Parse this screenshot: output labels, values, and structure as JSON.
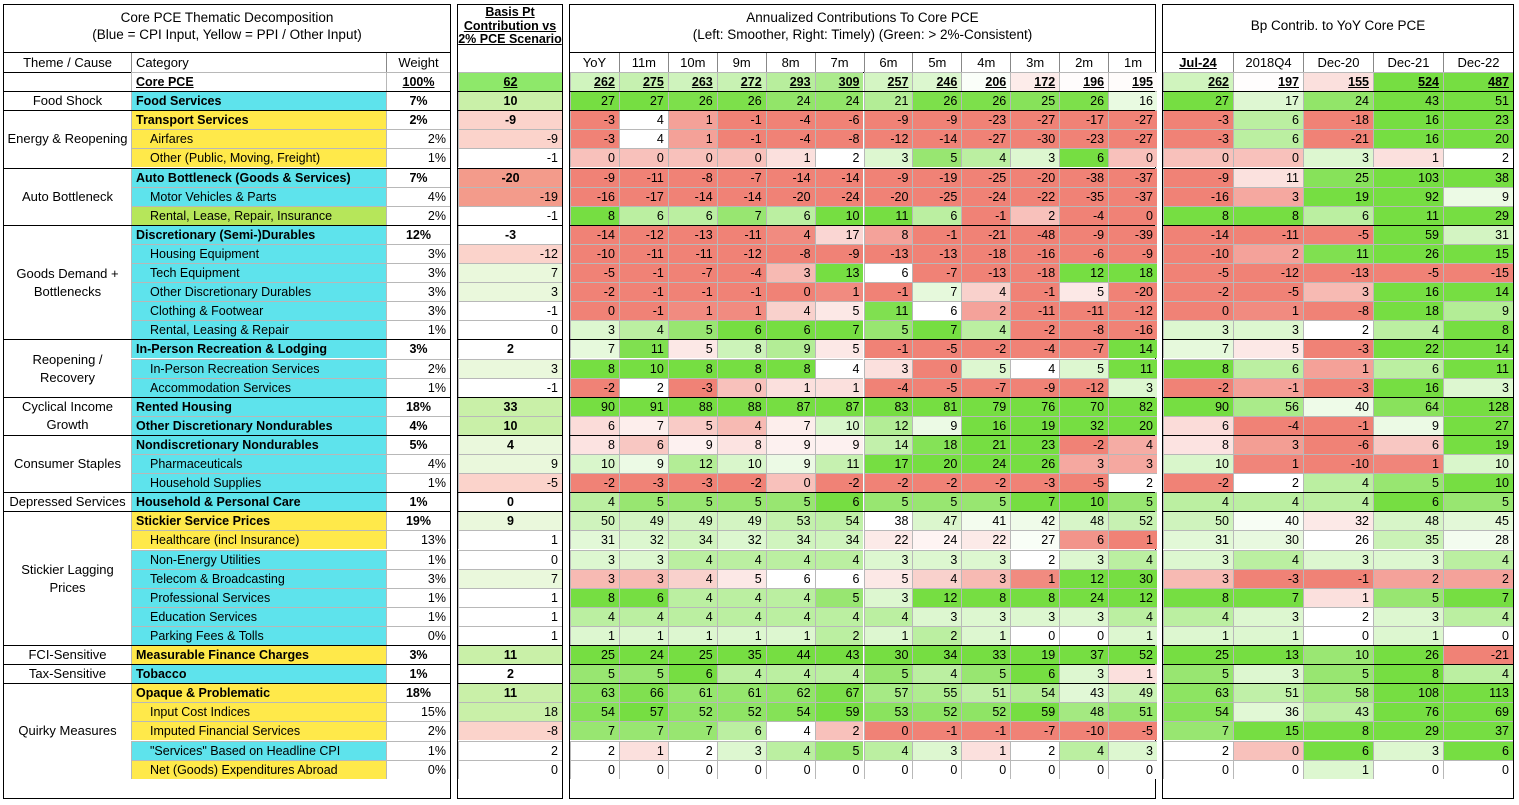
{
  "panel1": {
    "title_line1": "Core PCE Thematic  Decomposition",
    "title_line2": "(Blue = CPI Input, Yellow = PPI / Other Input)",
    "col_theme": "Theme / Cause",
    "col_category": "Category",
    "col_weight": "Weight"
  },
  "panel2": {
    "title": "Basis Pt Contribution vs 2% PCE Scenario"
  },
  "panel3": {
    "title_line1": "Annualized Contributions To Core PCE",
    "title_line2": "(Left: Smoother, Right: Timely) (Green: > 2%-Consistent)",
    "columns": [
      "YoY",
      "11m",
      "10m",
      "9m",
      "8m",
      "7m",
      "6m",
      "5m",
      "4m",
      "3m",
      "2m",
      "1m"
    ]
  },
  "panel4": {
    "title": "Bp Contrib. to YoY Core PCE",
    "columns": [
      "Jul-24",
      "2018Q4",
      "Dec-20",
      "Dec-21",
      "Dec-22"
    ]
  },
  "themes": [
    {
      "label": "",
      "start": 0,
      "span": 1
    },
    {
      "label": "Food Shock",
      "start": 1,
      "span": 1
    },
    {
      "label": "Energy & Reopening",
      "start": 2,
      "span": 3
    },
    {
      "label": "Auto Bottleneck",
      "start": 5,
      "span": 3
    },
    {
      "label": "Goods Demand + Bottlenecks",
      "start": 8,
      "span": 6
    },
    {
      "label": "Reopening / Recovery",
      "start": 14,
      "span": 3
    },
    {
      "label": "Cyclical Income Growth",
      "start": 17,
      "span": 2
    },
    {
      "label": "Consumer Staples",
      "start": 19,
      "span": 3
    },
    {
      "label": "Depressed Services",
      "start": 22,
      "span": 1
    },
    {
      "label": "Stickier Lagging Prices",
      "start": 23,
      "span": 7
    },
    {
      "label": "FCI-Sensitive",
      "start": 30,
      "span": 1
    },
    {
      "label": "Tax-Sensitive",
      "start": 31,
      "span": 1
    },
    {
      "label": "Quirky Measures",
      "start": 32,
      "span": 5
    }
  ],
  "rows": [
    {
      "cat": "Core PCE",
      "w": "100%",
      "bp": "62",
      "lvl": 0,
      "src": "total",
      "a": [
        262,
        275,
        263,
        272,
        293,
        309,
        257,
        246,
        206,
        172,
        196,
        195
      ],
      "b": [
        262,
        197,
        155,
        524,
        487
      ]
    },
    {
      "cat": "Food Services",
      "w": "7%",
      "bp": "10",
      "lvl": 0,
      "src": "blue",
      "a": [
        27,
        27,
        26,
        26,
        24,
        24,
        21,
        26,
        26,
        25,
        26,
        16
      ],
      "b": [
        27,
        17,
        24,
        43,
        51
      ]
    },
    {
      "cat": "Transport Services",
      "w": "2%",
      "bp": "-9",
      "lvl": 0,
      "src": "yellow",
      "a": [
        -3,
        4,
        1,
        -1,
        -4,
        -6,
        -9,
        -9,
        -23,
        -27,
        -17,
        -27
      ],
      "b": [
        -3,
        6,
        -18,
        16,
        23
      ]
    },
    {
      "cat": "Airfares",
      "w": "2%",
      "bp": "-9",
      "lvl": 1,
      "src": "yellow",
      "a": [
        -3,
        4,
        1,
        -1,
        -4,
        -8,
        -12,
        -14,
        -27,
        -30,
        -23,
        -27
      ],
      "b": [
        -3,
        6,
        -21,
        16,
        20
      ]
    },
    {
      "cat": "Other (Public, Moving, Freight)",
      "w": "1%",
      "bp": "-1",
      "lvl": 1,
      "src": "yellow",
      "a": [
        0,
        0,
        0,
        0,
        1,
        2,
        3,
        5,
        4,
        3,
        6,
        0
      ],
      "b": [
        0,
        0,
        3,
        1,
        2
      ]
    },
    {
      "cat": "Auto Bottleneck (Goods & Services)",
      "w": "7%",
      "bp": "-20",
      "lvl": 0,
      "src": "blue",
      "a": [
        -9,
        -11,
        -8,
        -7,
        -14,
        -14,
        -9,
        -19,
        -25,
        -20,
        -38,
        -37
      ],
      "b": [
        -9,
        11,
        25,
        103,
        38
      ]
    },
    {
      "cat": "Motor Vehicles & Parts",
      "w": "4%",
      "bp": "-19",
      "lvl": 1,
      "src": "blue",
      "a": [
        -16,
        -17,
        -14,
        -14,
        -20,
        -24,
        -20,
        -25,
        -24,
        -22,
        -35,
        -37
      ],
      "b": [
        -16,
        3,
        19,
        92,
        9
      ]
    },
    {
      "cat": "Rental, Lease, Repair, Insurance",
      "w": "2%",
      "bp": "-1",
      "lvl": 1,
      "src": "lgreen",
      "a": [
        8,
        6,
        6,
        7,
        6,
        10,
        11,
        6,
        -1,
        2,
        -4,
        0
      ],
      "b": [
        8,
        8,
        6,
        11,
        29
      ]
    },
    {
      "cat": "Discretionary (Semi-)Durables",
      "w": "12%",
      "bp": "-3",
      "lvl": 0,
      "src": "blue",
      "a": [
        -14,
        -12,
        -13,
        -11,
        4,
        17,
        8,
        -1,
        -21,
        -48,
        -9,
        -39
      ],
      "b": [
        -14,
        -11,
        -5,
        59,
        31
      ]
    },
    {
      "cat": "Housing Equipment",
      "w": "3%",
      "bp": "-12",
      "lvl": 1,
      "src": "blue",
      "a": [
        -10,
        -11,
        -11,
        -12,
        -8,
        -9,
        -13,
        -13,
        -18,
        -16,
        -6,
        -9
      ],
      "b": [
        -10,
        2,
        11,
        26,
        15
      ]
    },
    {
      "cat": "Tech Equipment",
      "w": "3%",
      "bp": "7",
      "lvl": 1,
      "src": "blue",
      "a": [
        -5,
        -1,
        -7,
        -4,
        3,
        13,
        6,
        -7,
        -13,
        -18,
        12,
        18
      ],
      "b": [
        -5,
        -12,
        -13,
        -5,
        -15
      ]
    },
    {
      "cat": "Other Discretionary Durables",
      "w": "3%",
      "bp": "3",
      "lvl": 1,
      "src": "blue",
      "a": [
        -2,
        -1,
        -1,
        -1,
        0,
        1,
        -1,
        7,
        4,
        -1,
        5,
        -20
      ],
      "b": [
        -2,
        -5,
        3,
        16,
        14
      ]
    },
    {
      "cat": "Clothing & Footwear",
      "w": "3%",
      "bp": "-1",
      "lvl": 1,
      "src": "blue",
      "a": [
        0,
        -1,
        1,
        1,
        4,
        5,
        11,
        6,
        2,
        -11,
        -11,
        -12
      ],
      "b": [
        0,
        1,
        -8,
        18,
        9
      ]
    },
    {
      "cat": "Rental, Leasing & Repair",
      "w": "1%",
      "bp": "0",
      "lvl": 1,
      "src": "blue",
      "a": [
        3,
        4,
        5,
        6,
        6,
        7,
        5,
        7,
        4,
        -2,
        -8,
        -16
      ],
      "b": [
        3,
        3,
        2,
        4,
        8
      ]
    },
    {
      "cat": "In-Person Recreation & Lodging",
      "w": "3%",
      "bp": "2",
      "lvl": 0,
      "src": "blue",
      "a": [
        7,
        11,
        5,
        8,
        9,
        5,
        -1,
        -5,
        -2,
        -4,
        -7,
        14
      ],
      "b": [
        7,
        5,
        -3,
        22,
        14
      ]
    },
    {
      "cat": "In-Person Recreation Services",
      "w": "2%",
      "bp": "3",
      "lvl": 1,
      "src": "blue",
      "a": [
        8,
        10,
        8,
        8,
        8,
        4,
        3,
        0,
        5,
        4,
        5,
        11
      ],
      "b": [
        8,
        6,
        1,
        6,
        11
      ]
    },
    {
      "cat": "Accommodation Services",
      "w": "1%",
      "bp": "-1",
      "lvl": 1,
      "src": "blue",
      "a": [
        -2,
        2,
        -3,
        0,
        1,
        1,
        -4,
        -5,
        -7,
        -9,
        -12,
        3
      ],
      "b": [
        -2,
        -1,
        -3,
        16,
        3
      ]
    },
    {
      "cat": "Rented Housing",
      "w": "18%",
      "bp": "33",
      "lvl": 0,
      "src": "blue",
      "a": [
        90,
        91,
        88,
        88,
        87,
        87,
        83,
        81,
        79,
        76,
        70,
        82
      ],
      "b": [
        90,
        56,
        40,
        64,
        128
      ]
    },
    {
      "cat": "Other Discretionary Nondurables",
      "w": "4%",
      "bp": "10",
      "lvl": 0,
      "src": "blue",
      "a": [
        6,
        7,
        5,
        4,
        7,
        10,
        12,
        9,
        16,
        19,
        32,
        20
      ],
      "b": [
        6,
        -4,
        -1,
        9,
        27
      ]
    },
    {
      "cat": "Nondiscretionary Nondurables",
      "w": "5%",
      "bp": "4",
      "lvl": 0,
      "src": "blue",
      "a": [
        8,
        6,
        9,
        8,
        9,
        9,
        14,
        18,
        21,
        23,
        -2,
        4
      ],
      "b": [
        8,
        3,
        -6,
        6,
        19
      ]
    },
    {
      "cat": "Pharmaceuticals",
      "w": "4%",
      "bp": "9",
      "lvl": 1,
      "src": "blue",
      "a": [
        10,
        9,
        12,
        10,
        9,
        11,
        17,
        20,
        24,
        26,
        3,
        3
      ],
      "b": [
        10,
        1,
        -10,
        1,
        10
      ]
    },
    {
      "cat": "Household Supplies",
      "w": "1%",
      "bp": "-5",
      "lvl": 1,
      "src": "blue",
      "a": [
        -2,
        -3,
        -3,
        -2,
        0,
        -2,
        -2,
        -2,
        -2,
        -3,
        -5,
        2
      ],
      "b": [
        -2,
        2,
        4,
        5,
        10
      ]
    },
    {
      "cat": "Household & Personal Care",
      "w": "1%",
      "bp": "0",
      "lvl": 0,
      "src": "blue",
      "a": [
        4,
        5,
        5,
        5,
        5,
        6,
        5,
        5,
        5,
        7,
        10,
        5
      ],
      "b": [
        4,
        4,
        4,
        6,
        5
      ]
    },
    {
      "cat": "Stickier Service Prices",
      "w": "19%",
      "bp": "9",
      "lvl": 0,
      "src": "yellow",
      "a": [
        50,
        49,
        49,
        49,
        53,
        54,
        38,
        47,
        41,
        42,
        48,
        52
      ],
      "b": [
        50,
        40,
        32,
        48,
        45
      ]
    },
    {
      "cat": "Healthcare (incl Insurance)",
      "w": "13%",
      "bp": "1",
      "lvl": 1,
      "src": "yellow",
      "a": [
        31,
        32,
        34,
        32,
        34,
        34,
        22,
        24,
        22,
        27,
        6,
        1
      ],
      "b": [
        31,
        30,
        26,
        35,
        28
      ]
    },
    {
      "cat": "Non-Energy Utilities",
      "w": "1%",
      "bp": "0",
      "lvl": 1,
      "src": "blue",
      "a": [
        3,
        3,
        4,
        4,
        4,
        4,
        3,
        3,
        3,
        2,
        3,
        4
      ],
      "b": [
        3,
        4,
        3,
        3,
        4
      ]
    },
    {
      "cat": "Telecom & Broadcasting",
      "w": "3%",
      "bp": "7",
      "lvl": 1,
      "src": "blue",
      "a": [
        3,
        3,
        4,
        5,
        6,
        6,
        5,
        4,
        3,
        1,
        12,
        30
      ],
      "b": [
        3,
        -3,
        -1,
        2,
        2
      ]
    },
    {
      "cat": "Professional Services",
      "w": "1%",
      "bp": "1",
      "lvl": 1,
      "src": "blue",
      "a": [
        8,
        6,
        4,
        4,
        4,
        5,
        3,
        12,
        8,
        8,
        24,
        12
      ],
      "b": [
        8,
        7,
        1,
        5,
        7
      ]
    },
    {
      "cat": "Education Services",
      "w": "1%",
      "bp": "1",
      "lvl": 1,
      "src": "blue",
      "a": [
        4,
        4,
        4,
        4,
        4,
        4,
        4,
        3,
        3,
        3,
        3,
        4
      ],
      "b": [
        4,
        3,
        2,
        3,
        4
      ]
    },
    {
      "cat": "Parking Fees & Tolls",
      "w": "0%",
      "bp": "1",
      "lvl": 1,
      "src": "blue",
      "a": [
        1,
        1,
        1,
        1,
        1,
        2,
        1,
        2,
        1,
        0,
        0,
        1
      ],
      "b": [
        1,
        1,
        0,
        1,
        0
      ]
    },
    {
      "cat": "Measurable Finance Charges",
      "w": "3%",
      "bp": "11",
      "lvl": 0,
      "src": "yellow",
      "a": [
        25,
        24,
        25,
        35,
        44,
        43,
        30,
        34,
        33,
        19,
        37,
        52
      ],
      "b": [
        25,
        13,
        10,
        26,
        -21
      ]
    },
    {
      "cat": "Tobacco",
      "w": "1%",
      "bp": "2",
      "lvl": 0,
      "src": "blue",
      "a": [
        5,
        5,
        6,
        4,
        4,
        4,
        5,
        4,
        5,
        6,
        3,
        1
      ],
      "b": [
        5,
        3,
        5,
        8,
        4
      ]
    },
    {
      "cat": "Opaque & Problematic",
      "w": "18%",
      "bp": "11",
      "lvl": 0,
      "src": "yellow",
      "a": [
        63,
        66,
        61,
        61,
        62,
        67,
        57,
        55,
        51,
        54,
        43,
        49
      ],
      "b": [
        63,
        51,
        58,
        108,
        113
      ]
    },
    {
      "cat": "Input Cost Indices",
      "w": "15%",
      "bp": "18",
      "lvl": 1,
      "src": "yellow",
      "a": [
        54,
        57,
        52,
        52,
        54,
        59,
        53,
        52,
        52,
        59,
        48,
        51
      ],
      "b": [
        54,
        36,
        43,
        76,
        69
      ]
    },
    {
      "cat": "Imputed Financial Services",
      "w": "2%",
      "bp": "-8",
      "lvl": 1,
      "src": "yellow",
      "a": [
        7,
        7,
        7,
        6,
        4,
        2,
        0,
        -1,
        -1,
        -7,
        -10,
        -5
      ],
      "b": [
        7,
        15,
        8,
        29,
        37
      ]
    },
    {
      "cat": "\"Services\" Based on Headline CPI",
      "w": "1%",
      "bp": "2",
      "lvl": 1,
      "src": "blue",
      "a": [
        2,
        1,
        2,
        3,
        4,
        5,
        4,
        3,
        1,
        2,
        4,
        3
      ],
      "b": [
        2,
        0,
        6,
        3,
        6
      ]
    },
    {
      "cat": "Net (Goods) Expenditures Abroad",
      "w": "0%",
      "bp": "0",
      "lvl": 1,
      "src": "yellow",
      "a": [
        0,
        0,
        0,
        0,
        0,
        0,
        0,
        0,
        0,
        0,
        0,
        0
      ],
      "b": [
        0,
        0,
        1,
        0,
        0
      ]
    }
  ],
  "colors": {
    "blue": "#5ee3ec",
    "yellow": "#ffe94a",
    "lgreen": "#b6e65a",
    "green_strong": "#7ee04a",
    "red_strong": "#f08a7a"
  }
}
